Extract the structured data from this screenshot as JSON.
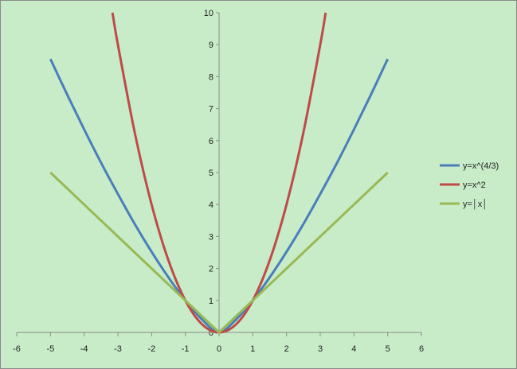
{
  "chart_data": {
    "type": "line",
    "title": "",
    "xlabel": "",
    "ylabel": "",
    "xlim": [
      -6,
      6
    ],
    "ylim": [
      0,
      10
    ],
    "x_ticks": [
      -6,
      -5,
      -4,
      -3,
      -2,
      -1,
      0,
      1,
      2,
      3,
      4,
      5,
      6
    ],
    "y_ticks": [
      0,
      1,
      2,
      3,
      4,
      5,
      6,
      7,
      8,
      9,
      10
    ],
    "grid": false,
    "legend_position": "right",
    "series": [
      {
        "name": "y=x^(4/3)",
        "color": "#4a7ebb",
        "x": [
          -5,
          -4.5,
          -4,
          -3.5,
          -3,
          -2.5,
          -2,
          -1.5,
          -1,
          -0.5,
          0,
          0.5,
          1,
          1.5,
          2,
          2.5,
          3,
          3.5,
          4,
          4.5,
          5
        ],
        "y": [
          8.55,
          7.43,
          6.35,
          5.31,
          4.33,
          3.39,
          2.52,
          1.72,
          1.0,
          0.4,
          0,
          0.4,
          1.0,
          1.72,
          2.52,
          3.39,
          4.33,
          5.31,
          6.35,
          7.43,
          8.55
        ]
      },
      {
        "name": "y=x^2",
        "color": "#be4b48",
        "x": [
          -3.16,
          -3,
          -2.5,
          -2,
          -1.5,
          -1,
          -0.5,
          0,
          0.5,
          1,
          1.5,
          2,
          2.5,
          3,
          3.16
        ],
        "y": [
          10.0,
          9.0,
          6.25,
          4.0,
          2.25,
          1.0,
          0.25,
          0,
          0.25,
          1.0,
          2.25,
          4.0,
          6.25,
          9.0,
          10.0
        ]
      },
      {
        "name": "y=│x│",
        "color": "#98b954",
        "x": [
          -5,
          -4,
          -3,
          -2,
          -1,
          0,
          1,
          2,
          3,
          4,
          5
        ],
        "y": [
          5,
          4,
          3,
          2,
          1,
          0,
          1,
          2,
          3,
          4,
          5
        ]
      }
    ]
  }
}
